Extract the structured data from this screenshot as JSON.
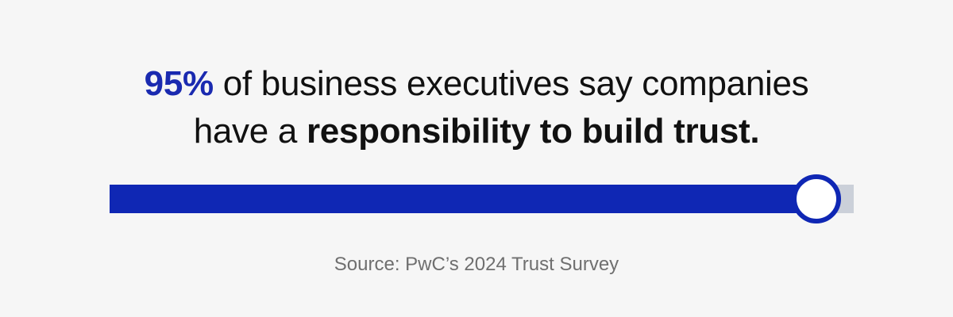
{
  "headline": {
    "stat": "95%",
    "line1_rest": " of business executives say companies",
    "line2_pre": "have a ",
    "line2_bold": "responsibility to build trust."
  },
  "progress": {
    "value_percent": 95,
    "fill_color": "#0f27b4",
    "track_color": "#cbd0d9"
  },
  "source": "Source: PwC’s 2024 Trust Survey",
  "colors": {
    "background": "#f6f6f6",
    "accent": "#1a2ab0",
    "text": "#111111",
    "muted": "#6f6f6f"
  }
}
